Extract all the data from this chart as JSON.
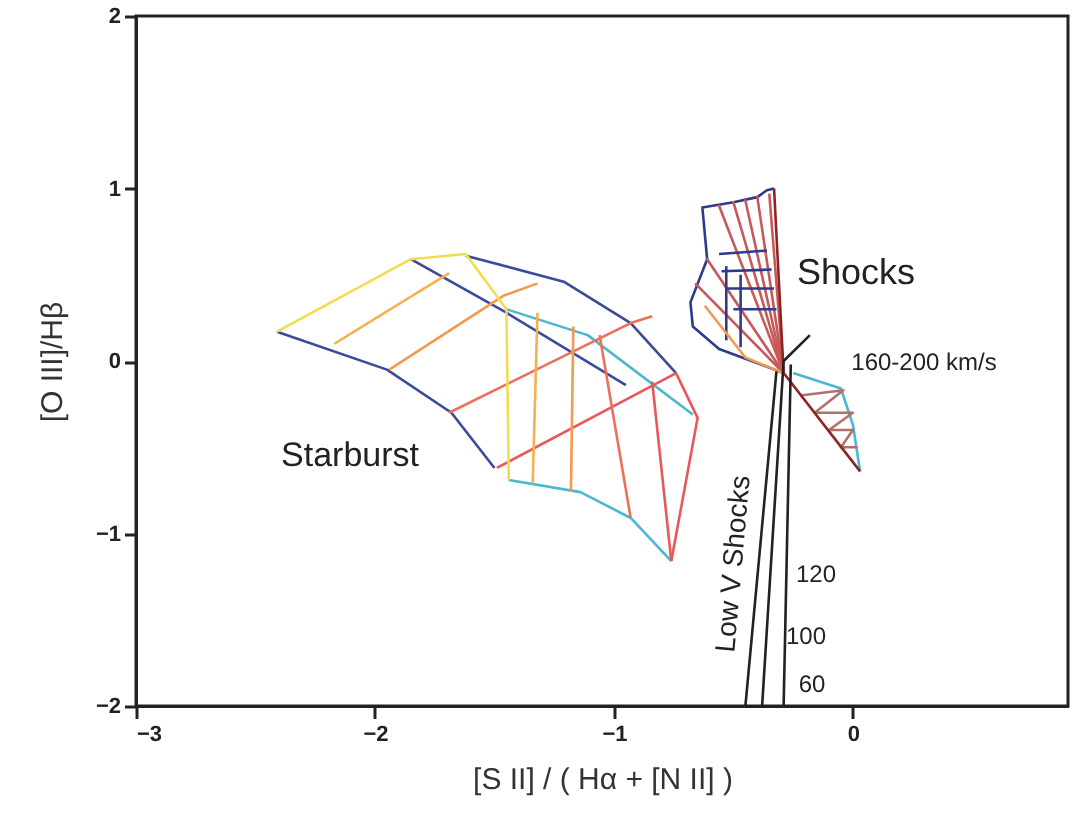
{
  "chart_data": {
    "type": "line",
    "xlabel": "[S II] / ( Hα + [N II] )",
    "ylabel": "[O III]/Hβ",
    "xlim": [
      -3,
      0.9
    ],
    "ylim": [
      -2,
      2
    ],
    "xticks": [
      -3,
      -2,
      -1,
      0
    ],
    "yticks": [
      -2,
      -1,
      0,
      1,
      2
    ],
    "grid": false,
    "marker": "none",
    "line_style": "solid",
    "series": [
      {
        "color": "#3b4a9a",
        "x": [
          -2.41,
          -1.95,
          -1.68,
          -1.5
        ],
        "values": [
          0.17,
          -0.05,
          -0.3,
          -0.62
        ]
      },
      {
        "color": "#3b4a9a",
        "x": [
          -1.85,
          -1.45,
          -0.95
        ],
        "values": [
          0.59,
          0.28,
          -0.14
        ]
      },
      {
        "color": "#3b4a9a",
        "x": [
          -1.62,
          -1.21,
          -0.93,
          -0.74
        ],
        "values": [
          0.61,
          0.46,
          0.22,
          -0.07
        ]
      },
      {
        "color": "#f3dc52",
        "x": [
          -2.41,
          -1.85,
          -1.62
        ],
        "values": [
          0.17,
          0.59,
          0.62
        ]
      },
      {
        "color": "#4ab8d0",
        "x": [
          -1.45,
          -1.11,
          -0.67
        ],
        "values": [
          0.3,
          0.15,
          -0.31
        ]
      },
      {
        "color": "#4ab8d0",
        "x": [
          -1.44,
          -1.14,
          -0.93,
          -0.76
        ],
        "values": [
          -0.69,
          -0.76,
          -0.91,
          -1.16
        ]
      },
      {
        "color": "#e8585a",
        "x": [
          -0.74,
          -0.65,
          -0.76
        ],
        "values": [
          -0.07,
          -0.33,
          -1.16
        ]
      },
      {
        "color": "#f5b050",
        "x": [
          -2.17,
          -1.69
        ],
        "values": [
          0.1,
          0.51
        ]
      },
      {
        "color": "#f39a50",
        "x": [
          -1.94,
          -1.46,
          -1.32
        ],
        "values": [
          -0.05,
          0.38,
          0.45
        ]
      },
      {
        "color": "#ec7058",
        "x": [
          -1.69,
          -0.93,
          -0.84
        ],
        "values": [
          -0.3,
          0.22,
          0.26
        ]
      },
      {
        "color": "#e8585a",
        "x": [
          -1.49,
          -0.74
        ],
        "values": [
          -0.62,
          -0.07
        ]
      },
      {
        "color": "#f3dc52",
        "x": [
          -1.62,
          -1.45,
          -1.44
        ],
        "values": [
          0.62,
          0.3,
          -0.69
        ]
      },
      {
        "color": "#f5b050",
        "x": [
          -1.32,
          -1.34
        ],
        "values": [
          0.28,
          -0.71
        ]
      },
      {
        "color": "#f39a50",
        "x": [
          -1.17,
          -1.18
        ],
        "values": [
          0.2,
          -0.76
        ]
      },
      {
        "color": "#ec7058",
        "x": [
          -1.06,
          -0.93
        ],
        "values": [
          0.15,
          -0.91
        ]
      },
      {
        "color": "#e8585a",
        "x": [
          -0.84,
          -0.76
        ],
        "values": [
          -0.12,
          -1.16
        ]
      },
      {
        "color": "#2e3a8c",
        "x": [
          -0.29,
          -0.56,
          -0.67,
          -0.68,
          -0.61,
          -0.63,
          -0.5,
          -0.4,
          -0.36,
          -0.33
        ],
        "values": [
          -0.07,
          0.07,
          0.2,
          0.34,
          0.59,
          0.89,
          0.92,
          0.95,
          0.99,
          1.0
        ]
      },
      {
        "color": "#c8595a",
        "x": [
          -0.29,
          -0.5,
          -0.29,
          -0.4,
          -0.29,
          -0.61,
          -0.29,
          -0.66
        ],
        "values": [
          -0.07,
          0.92,
          -0.07,
          0.95,
          -0.07,
          0.59,
          -0.07,
          0.45
        ]
      },
      {
        "color": "#c8595a",
        "x": [
          -0.29,
          -0.56,
          -0.29,
          -0.45,
          -0.29,
          -0.35
        ],
        "values": [
          -0.07,
          0.9,
          -0.07,
          0.93,
          -0.07,
          0.97
        ]
      },
      {
        "color": "#2e3a8c",
        "x": [
          -0.56,
          -0.36
        ],
        "values": [
          0.62,
          0.64
        ]
      },
      {
        "color": "#2e3a8c",
        "x": [
          -0.55,
          -0.34
        ],
        "values": [
          0.52,
          0.53
        ]
      },
      {
        "color": "#2e3a8c",
        "x": [
          -0.53,
          -0.33
        ],
        "values": [
          0.42,
          0.42
        ]
      },
      {
        "color": "#2e3a8c",
        "x": [
          -0.5,
          -0.32
        ],
        "values": [
          0.3,
          0.3
        ]
      },
      {
        "color": "#2e3a8c",
        "x": [
          -0.53,
          -0.53
        ],
        "values": [
          0.55,
          0.12
        ]
      },
      {
        "color": "#2e3a8c",
        "x": [
          -0.47,
          -0.47
        ],
        "values": [
          0.5,
          0.08
        ]
      },
      {
        "color": "#f39a50",
        "x": [
          -0.62,
          -0.45,
          -0.29
        ],
        "values": [
          0.32,
          0.02,
          -0.07
        ]
      },
      {
        "color": "#4ab8d0",
        "x": [
          -0.25,
          -0.05,
          0.0,
          0.03
        ],
        "values": [
          -0.07,
          -0.16,
          -0.37,
          -0.64
        ]
      },
      {
        "color": "#b0706e",
        "x": [
          -0.22,
          -0.04,
          -0.16,
          0.0,
          -0.1,
          0.0,
          -0.05,
          0.02
        ],
        "values": [
          -0.2,
          -0.17,
          -0.3,
          -0.3,
          -0.4,
          -0.4,
          -0.5,
          -0.5
        ]
      },
      {
        "color": "#8f2424",
        "x": [
          -0.33,
          -0.29,
          0.03
        ],
        "values": [
          1.0,
          -0.07,
          -0.64
        ]
      },
      {
        "color": "#222222",
        "x": [
          -0.45,
          -0.32
        ],
        "values": [
          -2,
          -0.06
        ]
      },
      {
        "color": "#222222",
        "x": [
          -0.38,
          -0.29,
          -0.18
        ],
        "values": [
          -2,
          0.0,
          0.15
        ]
      },
      {
        "color": "#222222",
        "x": [
          -0.29,
          -0.26
        ],
        "values": [
          -2,
          -0.02
        ]
      }
    ],
    "annotations": [
      "Starburst",
      "Shocks",
      "160-200 km/s",
      "Low V Shocks",
      "120",
      "100",
      "60"
    ]
  }
}
